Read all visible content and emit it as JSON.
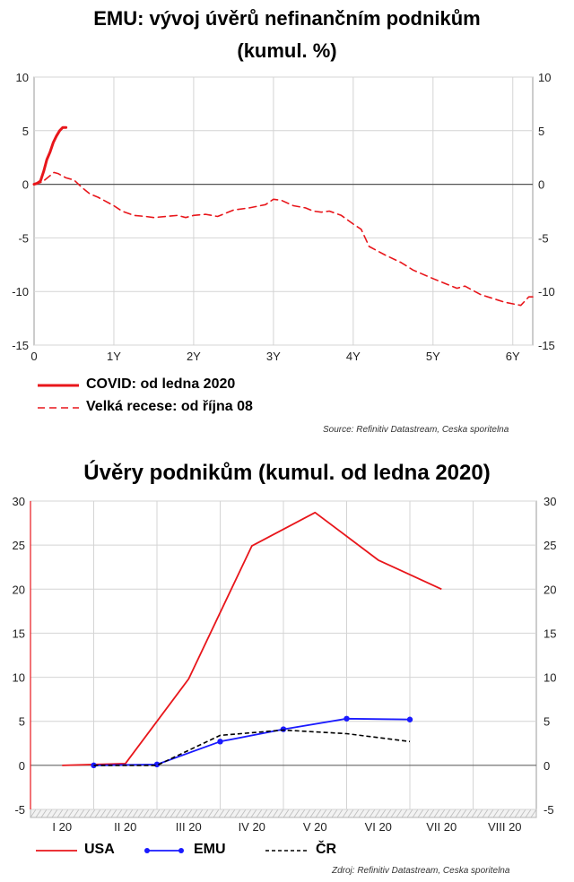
{
  "chart_data": [
    {
      "type": "line",
      "title": "EMU: vývoj úvěrů nefinančním podnikům",
      "subtitle": "(kumul. %)",
      "x_tick_labels": [
        "0",
        "1Y",
        "2Y",
        "3Y",
        "4Y",
        "5Y",
        "6Y"
      ],
      "y_tick_labels": [
        "10",
        "5",
        "0",
        "-5",
        "-10",
        "-15"
      ],
      "xlim": [
        0,
        6.25
      ],
      "ylim": [
        -15,
        10
      ],
      "grid": true,
      "series": [
        {
          "name": "COVID: od ledna 2020",
          "color": "#e8161b",
          "style": "solid",
          "x": [
            0,
            0.04,
            0.08,
            0.12,
            0.16,
            0.2,
            0.24,
            0.28,
            0.32,
            0.36,
            0.4
          ],
          "y": [
            0,
            0.1,
            0.3,
            1.2,
            2.3,
            3.0,
            3.9,
            4.5,
            5.0,
            5.3,
            5.3
          ]
        },
        {
          "name": "Velká recese: od října 08",
          "color": "#e8161b",
          "style": "dashed",
          "x": [
            0,
            0.1,
            0.2,
            0.25,
            0.3,
            0.4,
            0.5,
            0.6,
            0.7,
            0.8,
            1.0,
            1.1,
            1.25,
            1.4,
            1.5,
            1.65,
            1.8,
            1.9,
            2.0,
            2.15,
            2.3,
            2.5,
            2.7,
            2.9,
            3.0,
            3.1,
            3.25,
            3.4,
            3.5,
            3.6,
            3.7,
            3.85,
            4.0,
            4.1,
            4.2,
            4.4,
            4.6,
            4.75,
            5.0,
            5.2,
            5.3,
            5.4,
            5.6,
            5.9,
            6.1,
            6.2,
            6.25
          ],
          "y": [
            0,
            0.2,
            0.8,
            1.1,
            1.0,
            0.6,
            0.4,
            -0.3,
            -0.9,
            -1.2,
            -2.0,
            -2.5,
            -2.9,
            -3.0,
            -3.1,
            -3.0,
            -2.9,
            -3.1,
            -2.9,
            -2.8,
            -3.0,
            -2.4,
            -2.2,
            -1.9,
            -1.4,
            -1.5,
            -2.0,
            -2.2,
            -2.5,
            -2.6,
            -2.5,
            -2.9,
            -3.7,
            -4.2,
            -5.8,
            -6.6,
            -7.3,
            -8.0,
            -8.8,
            -9.4,
            -9.7,
            -9.5,
            -10.3,
            -11.0,
            -11.3,
            -10.5,
            -10.5
          ]
        }
      ],
      "source": "Source: Refinitiv Datastream, Ceska sporitelna"
    },
    {
      "type": "line",
      "title": "Úvěry podnikům (kumul. od ledna 2020)",
      "categories": [
        "I 20",
        "II 20",
        "III 20",
        "IV 20",
        "V 20",
        "VI 20",
        "VII 20",
        "VIII 20"
      ],
      "y_tick_labels": [
        "30",
        "25",
        "20",
        "15",
        "10",
        "5",
        "0",
        "-5"
      ],
      "ylim": [
        -5,
        30
      ],
      "grid": true,
      "series": [
        {
          "name": "USA",
          "color": "#e8161b",
          "style": "solid",
          "markers": false,
          "x": [
            0.0,
            1.0,
            2.0,
            3.0,
            4.0,
            5.0,
            6.0
          ],
          "y": [
            0,
            0.2,
            9.8,
            24.9,
            28.7,
            23.3,
            20.0
          ]
        },
        {
          "name": "EMU",
          "color": "#1a1aff",
          "style": "solid",
          "markers": true,
          "x": [
            0.5,
            1.5,
            2.5,
            3.5,
            4.5,
            5.5
          ],
          "y": [
            0,
            0.1,
            2.7,
            4.1,
            5.3,
            5.2
          ]
        },
        {
          "name": "ČR",
          "color": "#000000",
          "style": "dashed",
          "markers": false,
          "x": [
            0.5,
            1.5,
            2.5,
            3.5,
            4.5,
            5.5
          ],
          "y": [
            0,
            0,
            3.4,
            4.0,
            3.6,
            2.7
          ]
        }
      ],
      "source": "Zdroj: Refinitiv Datastream, Ceska sporitelna"
    }
  ]
}
